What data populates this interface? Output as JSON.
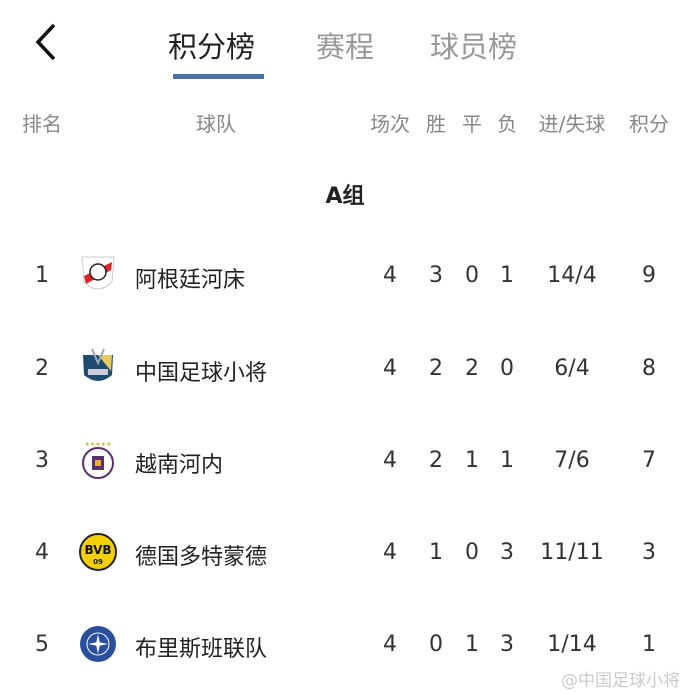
{
  "tabs": [
    {
      "label": "积分榜",
      "active": true
    },
    {
      "label": "赛程",
      "active": false
    },
    {
      "label": "球员榜",
      "active": false
    }
  ],
  "accent": "#4a6fa5",
  "columns": {
    "rank": "排名",
    "team": "球队",
    "played": "场次",
    "won": "胜",
    "drawn": "平",
    "lost": "负",
    "goals": "进/失球",
    "points": "积分"
  },
  "group": "A组",
  "rows": [
    {
      "rank": "1",
      "team": "阿根廷河床",
      "logo": "river-plate-crest",
      "played": "4",
      "won": "3",
      "drawn": "0",
      "lost": "1",
      "goals": "14/4",
      "points": "9"
    },
    {
      "rank": "2",
      "team": "中国足球小将",
      "logo": "china-football-kids-crest",
      "played": "4",
      "won": "2",
      "drawn": "2",
      "lost": "0",
      "goals": "6/4",
      "points": "8"
    },
    {
      "rank": "3",
      "team": "越南河内",
      "logo": "hanoi-fc-crest",
      "played": "4",
      "won": "2",
      "drawn": "1",
      "lost": "1",
      "goals": "7/6",
      "points": "7"
    },
    {
      "rank": "4",
      "team": "德国多特蒙德",
      "logo": "bvb-crest",
      "played": "4",
      "won": "1",
      "drawn": "0",
      "lost": "3",
      "goals": "11/11",
      "points": "3"
    },
    {
      "rank": "5",
      "team": "布里斯班联队",
      "logo": "brisbane-united-crest",
      "played": "4",
      "won": "0",
      "drawn": "1",
      "lost": "3",
      "goals": "1/14",
      "points": "1"
    }
  ],
  "watermark": "@中国足球小将"
}
